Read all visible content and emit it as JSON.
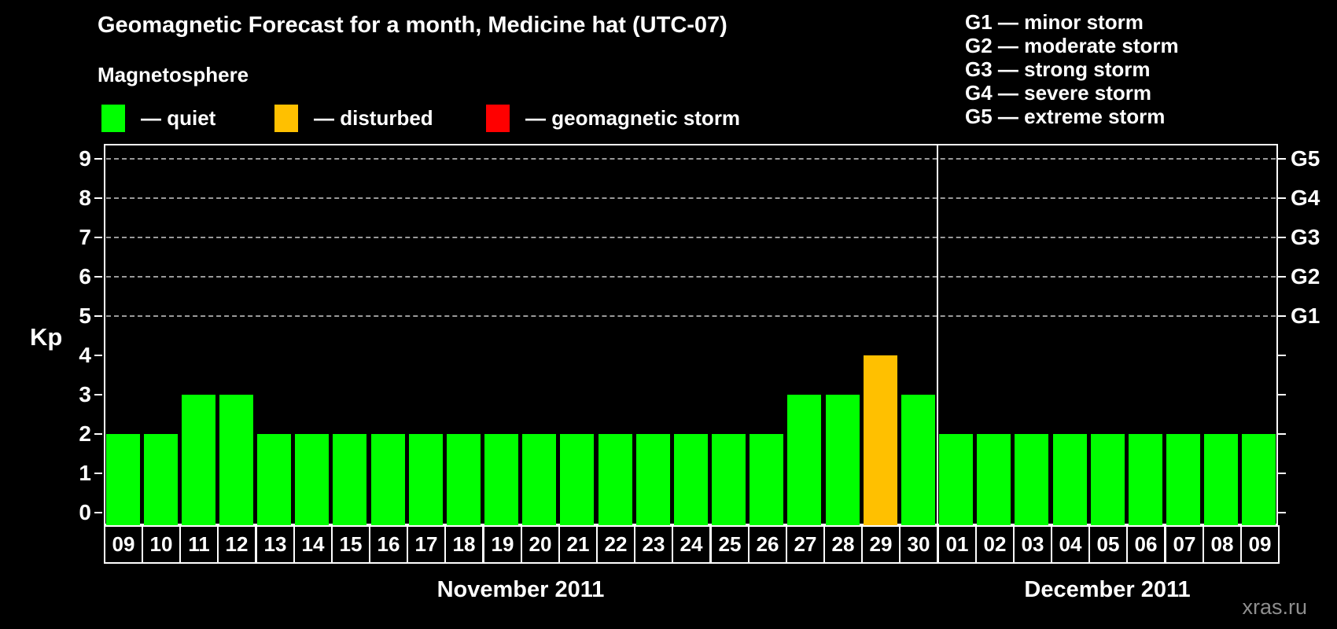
{
  "title": "Geomagnetic Forecast for a month, Medicine hat (UTC-07)",
  "legend": {
    "heading": "Magnetosphere",
    "dash": "—",
    "items": [
      {
        "name": "quiet",
        "label": "quiet",
        "color": "#00ff00"
      },
      {
        "name": "disturbed",
        "label": "disturbed",
        "color": "#ffc000"
      },
      {
        "name": "storm",
        "label": "geomagnetic storm",
        "color": "#ff0000"
      }
    ]
  },
  "g_scale_legend": {
    "dash": "—",
    "items": [
      {
        "code": "G1",
        "desc": "minor storm"
      },
      {
        "code": "G2",
        "desc": "moderate storm"
      },
      {
        "code": "G3",
        "desc": "strong storm"
      },
      {
        "code": "G4",
        "desc": "severe storm"
      },
      {
        "code": "G5",
        "desc": "extreme storm"
      }
    ]
  },
  "watermark": "xras.ru",
  "chart_data": {
    "type": "bar",
    "ylabel": "Kp",
    "ylim": [
      0,
      9
    ],
    "yticks": [
      0,
      1,
      2,
      3,
      4,
      5,
      6,
      7,
      8,
      9
    ],
    "gridlines_at_kp": [
      5,
      6,
      7,
      8,
      9
    ],
    "grid": "dashed-above-G1-only",
    "legend_position": "top",
    "right_axis": [
      {
        "label": "G1",
        "kp": 5
      },
      {
        "label": "G2",
        "kp": 6
      },
      {
        "label": "G3",
        "kp": 7
      },
      {
        "label": "G4",
        "kp": 8
      },
      {
        "label": "G5",
        "kp": 9
      }
    ],
    "status_colors": {
      "quiet": "#00ff00",
      "disturbed": "#ffc000",
      "storm": "#ff0000"
    },
    "months": [
      {
        "label": "November 2011",
        "days": [
          "09",
          "10",
          "11",
          "12",
          "13",
          "14",
          "15",
          "16",
          "17",
          "18",
          "19",
          "20",
          "21",
          "22",
          "23",
          "24",
          "25",
          "26",
          "27",
          "28",
          "29",
          "30"
        ],
        "values": [
          2,
          2,
          3,
          3,
          2,
          2,
          2,
          2,
          2,
          2,
          2,
          2,
          2,
          2,
          2,
          2,
          2,
          2,
          3,
          3,
          4,
          3
        ],
        "status": [
          "quiet",
          "quiet",
          "quiet",
          "quiet",
          "quiet",
          "quiet",
          "quiet",
          "quiet",
          "quiet",
          "quiet",
          "quiet",
          "quiet",
          "quiet",
          "quiet",
          "quiet",
          "quiet",
          "quiet",
          "quiet",
          "quiet",
          "quiet",
          "disturbed",
          "quiet"
        ]
      },
      {
        "label": "December 2011",
        "days": [
          "01",
          "02",
          "03",
          "04",
          "05",
          "06",
          "07",
          "08",
          "09"
        ],
        "values": [
          2,
          2,
          2,
          2,
          2,
          2,
          2,
          2,
          2
        ],
        "status": [
          "quiet",
          "quiet",
          "quiet",
          "quiet",
          "quiet",
          "quiet",
          "quiet",
          "quiet",
          "quiet"
        ]
      }
    ]
  }
}
